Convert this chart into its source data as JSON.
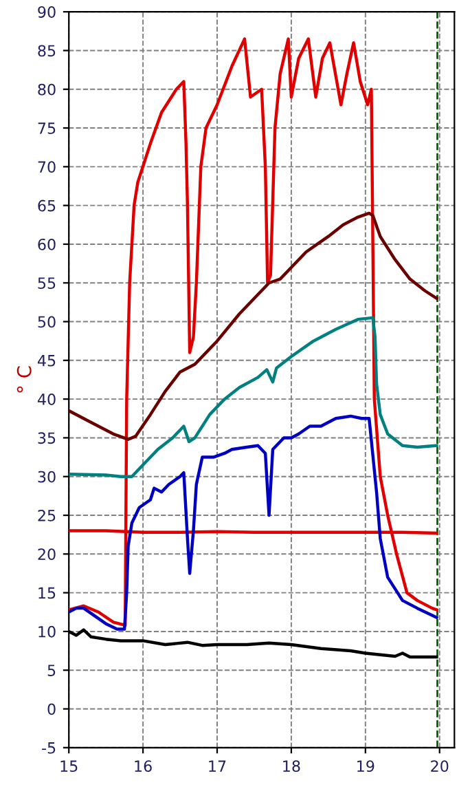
{
  "chart_data": {
    "type": "line",
    "ylabel": "° C",
    "xlim": [
      15,
      20.2
    ],
    "ylim": [
      -5,
      90
    ],
    "xticks": [
      15,
      16,
      17,
      18,
      19,
      20
    ],
    "yticks": [
      -5,
      0,
      5,
      10,
      15,
      20,
      25,
      30,
      35,
      40,
      45,
      50,
      55,
      60,
      65,
      70,
      75,
      80,
      85,
      90
    ],
    "grid": true,
    "line_style": "solid",
    "marker": "none",
    "ref_lines": [
      {
        "axis": "x",
        "value": 19.97,
        "color": "#006000",
        "line_style": "dashed"
      }
    ],
    "series": [
      {
        "color": "#e00000",
        "x": [
          15.0,
          15.2,
          15.4,
          15.6,
          15.76,
          15.78,
          15.82,
          15.88,
          15.93,
          16.1,
          16.25,
          16.45,
          16.55,
          16.58,
          16.6,
          16.63,
          16.68,
          16.72,
          16.78,
          16.85,
          17.0,
          17.2,
          17.37,
          17.45,
          17.6,
          17.65,
          17.68,
          17.72,
          17.78,
          17.85,
          17.96,
          18.0,
          18.1,
          18.23,
          18.33,
          18.42,
          18.52,
          18.67,
          18.75,
          18.84,
          18.93,
          19.03,
          19.08,
          19.1,
          19.12,
          19.2,
          19.3,
          19.42,
          19.56,
          19.7,
          19.9,
          19.96
        ],
        "values": [
          12.8,
          13.3,
          12.5,
          11.2,
          10.8,
          40,
          55,
          65,
          68,
          73,
          77,
          80,
          81,
          73,
          65,
          46,
          48,
          55,
          70,
          75,
          78,
          83,
          86.5,
          79,
          80,
          70,
          55,
          56,
          75,
          82,
          86.5,
          79,
          84,
          86.5,
          79,
          84,
          86,
          78,
          82,
          86,
          81,
          78,
          80,
          60,
          40,
          30,
          25,
          20,
          15,
          14,
          13,
          12.8
        ]
      },
      {
        "color": "#e00000",
        "x": [
          15.0,
          15.5,
          16.0,
          16.5,
          17.0,
          17.5,
          18.0,
          18.5,
          19.0,
          19.5,
          19.96
        ],
        "values": [
          23,
          23,
          22.8,
          22.8,
          22.9,
          22.8,
          22.8,
          22.8,
          22.8,
          22.8,
          22.7
        ]
      },
      {
        "color": "#6b0000",
        "x": [
          15.0,
          15.3,
          15.6,
          15.8,
          15.9,
          16.1,
          16.3,
          16.5,
          16.7,
          17.0,
          17.3,
          17.5,
          17.7,
          17.85,
          18.0,
          18.2,
          18.35,
          18.5,
          18.7,
          18.9,
          19.05,
          19.1,
          19.2,
          19.4,
          19.6,
          19.8,
          19.96
        ],
        "values": [
          38.5,
          37,
          35.5,
          34.8,
          35.2,
          38,
          41,
          43.5,
          44.5,
          47.5,
          51,
          53,
          55,
          55.5,
          57,
          59,
          60,
          61,
          62.5,
          63.5,
          64,
          63.7,
          61,
          58,
          55.5,
          54,
          53
        ]
      },
      {
        "color": "#008080",
        "x": [
          15.0,
          15.5,
          15.7,
          15.85,
          16.0,
          16.2,
          16.4,
          16.5,
          16.55,
          16.62,
          16.7,
          16.9,
          17.1,
          17.3,
          17.55,
          17.67,
          17.75,
          17.8,
          18.0,
          18.3,
          18.6,
          18.9,
          19.1,
          19.13,
          19.15,
          19.2,
          19.3,
          19.5,
          19.7,
          19.96
        ],
        "values": [
          30.3,
          30.2,
          30,
          30,
          31.5,
          33.5,
          35,
          36,
          36.5,
          34.5,
          35,
          38,
          40,
          41.5,
          42.8,
          43.8,
          42.2,
          44,
          45.5,
          47.5,
          49,
          50.3,
          50.5,
          48,
          42,
          38,
          35.5,
          34,
          33.8,
          34
        ]
      },
      {
        "color": "#0000c0",
        "x": [
          15.0,
          15.1,
          15.2,
          15.35,
          15.5,
          15.65,
          15.75,
          15.78,
          15.8,
          15.85,
          15.95,
          16.1,
          16.15,
          16.25,
          16.35,
          16.5,
          16.55,
          16.6,
          16.63,
          16.68,
          16.72,
          16.8,
          16.95,
          17.1,
          17.2,
          17.4,
          17.55,
          17.65,
          17.7,
          17.75,
          17.9,
          18.0,
          18.1,
          18.25,
          18.4,
          18.6,
          18.8,
          18.95,
          19.05,
          19.15,
          19.2,
          19.3,
          19.5,
          19.7,
          19.96
        ],
        "values": [
          12.5,
          13,
          13,
          12,
          11,
          10.3,
          10.3,
          15,
          21,
          24,
          26,
          27,
          28.5,
          28,
          29,
          30,
          30.5,
          22,
          17.5,
          23,
          29,
          32.5,
          32.5,
          33,
          33.5,
          33.8,
          34,
          33,
          25,
          33.5,
          35,
          35,
          35.5,
          36.5,
          36.5,
          37.5,
          37.8,
          37.5,
          37.5,
          28,
          22,
          17,
          14,
          13,
          11.8
        ]
      },
      {
        "color": "#000000",
        "x": [
          15.0,
          15.1,
          15.2,
          15.3,
          15.5,
          15.7,
          16.0,
          16.3,
          16.6,
          16.8,
          17.0,
          17.4,
          17.7,
          18.0,
          18.4,
          18.8,
          19.0,
          19.2,
          19.4,
          19.5,
          19.6,
          19.96
        ],
        "values": [
          10,
          9.5,
          10.2,
          9.3,
          9,
          8.8,
          8.8,
          8.3,
          8.6,
          8.2,
          8.3,
          8.3,
          8.5,
          8.3,
          7.8,
          7.5,
          7.2,
          7,
          6.8,
          7.2,
          6.7,
          6.7
        ]
      }
    ]
  }
}
